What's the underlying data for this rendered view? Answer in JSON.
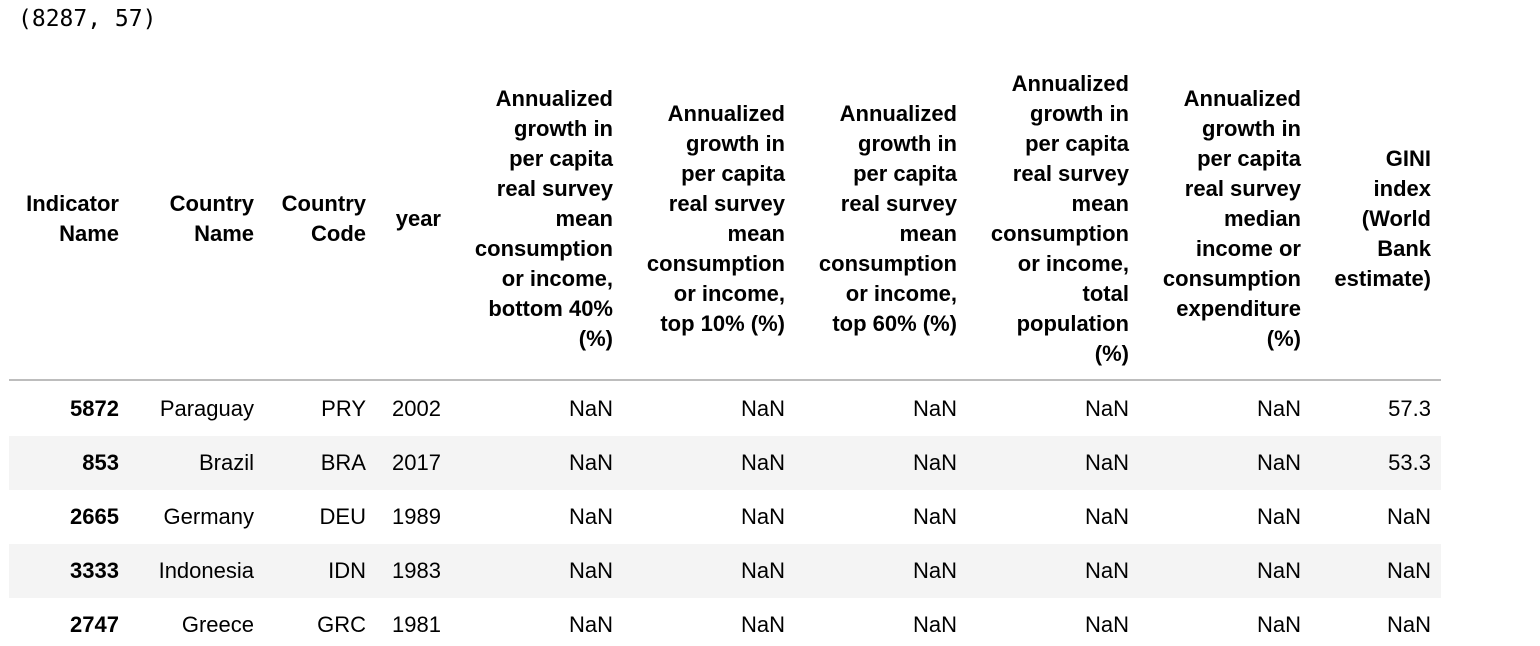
{
  "shape_output": "(8287, 57)",
  "table": {
    "columns": [
      [
        "Indicator",
        "Name"
      ],
      [
        "Country",
        "Name"
      ],
      [
        "Country",
        "Code"
      ],
      [
        "year"
      ],
      [
        "Annualized",
        "growth in",
        "per capita",
        "real survey",
        "mean",
        "consumption",
        "or income,",
        "bottom 40%",
        "(%)"
      ],
      [
        "Annualized",
        "growth in",
        "per capita",
        "real survey",
        "mean",
        "consumption",
        "or income,",
        "top 10% (%)"
      ],
      [
        "Annualized",
        "growth in",
        "per capita",
        "real survey",
        "mean",
        "consumption",
        "or income,",
        "top 60% (%)"
      ],
      [
        "Annualized",
        "growth in",
        "per capita",
        "real survey",
        "mean",
        "consumption",
        "or income,",
        "total",
        "population",
        "(%)"
      ],
      [
        "Annualized",
        "growth in",
        "per capita",
        "real survey",
        "median",
        "income or",
        "consumption",
        "expenditure",
        "(%)"
      ],
      [
        "GINI",
        "index",
        "(World",
        "Bank",
        "estimate)"
      ]
    ],
    "rows": [
      [
        "5872",
        "Paraguay",
        "PRY",
        "2002",
        "NaN",
        "NaN",
        "NaN",
        "NaN",
        "NaN",
        "57.3"
      ],
      [
        "853",
        "Brazil",
        "BRA",
        "2017",
        "NaN",
        "NaN",
        "NaN",
        "NaN",
        "NaN",
        "53.3"
      ],
      [
        "2665",
        "Germany",
        "DEU",
        "1989",
        "NaN",
        "NaN",
        "NaN",
        "NaN",
        "NaN",
        "NaN"
      ],
      [
        "3333",
        "Indonesia",
        "IDN",
        "1983",
        "NaN",
        "NaN",
        "NaN",
        "NaN",
        "NaN",
        "NaN"
      ],
      [
        "2747",
        "Greece",
        "GRC",
        "1981",
        "NaN",
        "NaN",
        "NaN",
        "NaN",
        "NaN",
        "NaN"
      ]
    ]
  }
}
